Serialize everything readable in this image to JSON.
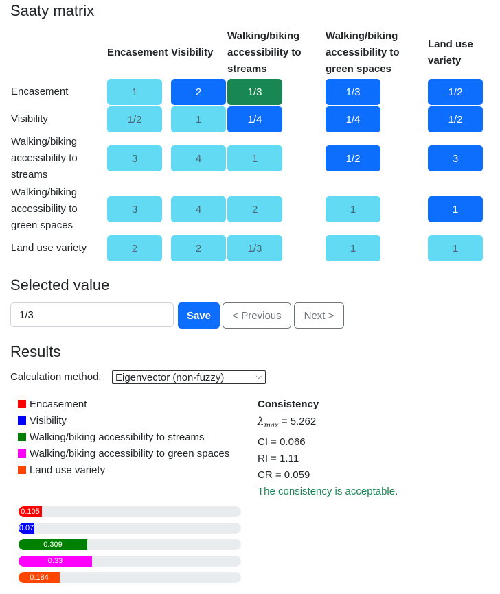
{
  "headings": {
    "saaty": "Saaty matrix",
    "selected": "Selected value",
    "results": "Results"
  },
  "criteria": [
    "Encasement",
    "Visibility",
    "Walking/biking accessibility to streams",
    "Walking/biking accessibility to green spaces",
    "Land use variety"
  ],
  "matrix": [
    [
      "1",
      "2",
      "1/3",
      "1/3",
      "1/2"
    ],
    [
      "1/2",
      "1",
      "1/4",
      "1/4",
      "1/2"
    ],
    [
      "3",
      "4",
      "1",
      "1/2",
      "3"
    ],
    [
      "3",
      "4",
      "2",
      "1",
      "1"
    ],
    [
      "2",
      "2",
      "1/3",
      "1",
      "1"
    ]
  ],
  "selected_cell_value": "1/3",
  "colors": {
    "lower_triangle": "#62daf3",
    "upper_triangle": "#0d6efd",
    "selected": "#198754",
    "consistency_ok": "#198754"
  },
  "selected_value": {
    "input_value": "1/3",
    "save": "Save",
    "previous": "< Previous",
    "next": "Next >"
  },
  "results": {
    "method_label": "Calculation method:",
    "method_value": "Eigenvector (non-fuzzy)",
    "legend": [
      {
        "name": "Encasement",
        "color": "#ff0000"
      },
      {
        "name": "Visibility",
        "color": "#0000ff"
      },
      {
        "name": "Walking/biking accessibility to streams",
        "color": "#008000"
      },
      {
        "name": "Walking/biking accessibility to green spaces",
        "color": "#ff00ff"
      },
      {
        "name": "Land use variety",
        "color": "#ff4500"
      }
    ],
    "weights": [
      {
        "label": "0.105",
        "value": 0.105,
        "color": "#ff0000"
      },
      {
        "label": "0.07",
        "value": 0.07,
        "color": "#0000ff"
      },
      {
        "label": "0.309",
        "value": 0.309,
        "color": "#008000"
      },
      {
        "label": "0.33",
        "value": 0.33,
        "color": "#ff00ff"
      },
      {
        "label": "0.184",
        "value": 0.184,
        "color": "#ff4500"
      }
    ],
    "consistency": {
      "title": "Consistency",
      "lambda_symbol": "λ",
      "lambda_sub": "max",
      "lambda_text": " = 5.262",
      "ci": "CI = 0.066",
      "ri": "RI = 1.11",
      "cr": "CR = 0.059",
      "message": "The consistency is acceptable."
    }
  }
}
